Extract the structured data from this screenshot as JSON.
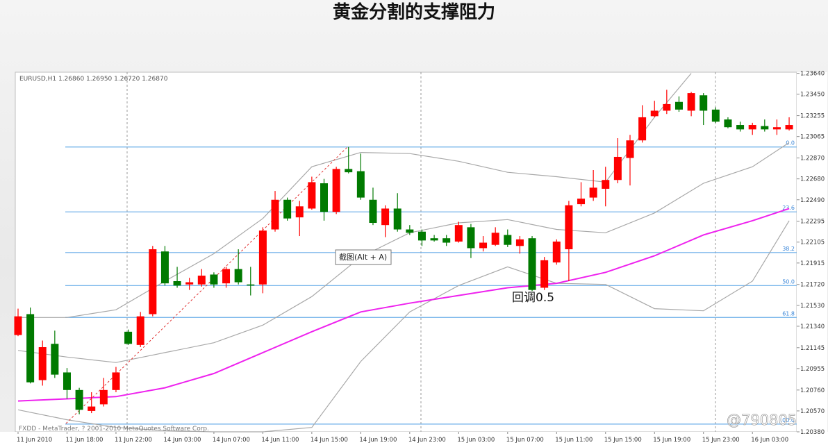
{
  "title": "黄金分割的支撑阻力",
  "tooltip": "截图(Alt + A)",
  "watermark": "@790805",
  "chart_data": {
    "type": "candlestick",
    "header": "EURUSD,H1  1.26860  1.26950  1.26720  1.26870",
    "footer": "FXDD - MetaTrader, ? 2001-2010 MetaQuotes Software Corp.",
    "annotation": "回调0.5",
    "up_color": "#ff0000",
    "down_color": "#007a00",
    "categories": [
      "11 Jun 2010",
      null,
      null,
      null,
      "11 Jun 18:00",
      null,
      null,
      null,
      "11 Jun 22:00",
      null,
      null,
      null,
      "14 Jun 03:00",
      null,
      null,
      null,
      "14 Jun 07:00",
      null,
      null,
      null,
      "14 Jun 11:00",
      null,
      null,
      null,
      "14 Jun 15:00",
      null,
      null,
      null,
      "14 Jun 19:00",
      null,
      null,
      null,
      "14 Jun 23:00",
      null,
      null,
      null,
      "15 Jun 03:00",
      null,
      null,
      null,
      "15 Jun 07:00",
      null,
      null,
      null,
      "15 Jun 11:00",
      null,
      null,
      null,
      "15 Jun 15:00",
      null,
      null,
      null,
      "15 Jun 19:00",
      null,
      null,
      null,
      "15 Jun 23:00",
      null,
      null,
      null,
      "16 Jun 03:00",
      null,
      null,
      null
    ],
    "open": [
      1.2126,
      1.2145,
      1.2085,
      1.2118,
      1.2092,
      1.2076,
      1.2057,
      1.2063,
      1.2076,
      1.2129,
      1.2117,
      1.2145,
      1.2202,
      1.2175,
      1.2172,
      1.2172,
      1.2181,
      1.2173,
      1.2186,
      1.2172,
      1.2172,
      1.2222,
      1.2249,
      1.2233,
      1.2241,
      1.2264,
      1.2238,
      1.2277,
      1.2275,
      1.2249,
      1.2226,
      1.2241,
      1.2222,
      1.222,
      1.2214,
      1.2214,
      1.2211,
      1.2224,
      1.2205,
      1.2208,
      1.2217,
      1.2207,
      1.2214,
      1.2169,
      1.2192,
      1.2204,
      1.2245,
      1.2251,
      1.2259,
      1.2267,
      1.2287,
      1.2303,
      1.2325,
      1.233,
      1.2338,
      1.233,
      1.2344,
      1.2331,
      1.2322,
      1.2317,
      1.2313,
      1.2316,
      1.2313,
      1.2313
    ],
    "high": [
      1.215,
      1.2151,
      1.2121,
      1.213,
      1.2096,
      1.2078,
      1.2074,
      1.2087,
      1.2097,
      1.2131,
      1.2147,
      1.2207,
      1.2207,
      1.2188,
      1.2178,
      1.2186,
      1.2183,
      1.2188,
      1.2204,
      1.2188,
      1.2224,
      1.2257,
      1.2251,
      1.2248,
      1.227,
      1.2268,
      1.2279,
      1.2297,
      1.2291,
      1.226,
      1.2244,
      1.2255,
      1.2226,
      1.2222,
      1.2217,
      1.2217,
      1.2229,
      1.2227,
      1.2216,
      1.2224,
      1.2222,
      1.2216,
      1.2216,
      1.2197,
      1.2213,
      1.2248,
      1.2265,
      1.2276,
      1.2279,
      1.2305,
      1.2308,
      1.2335,
      1.2339,
      1.2349,
      1.2343,
      1.2347,
      1.2346,
      1.2333,
      1.2324,
      1.232,
      1.2319,
      1.2322,
      1.2322,
      1.2324
    ],
    "low": [
      1.2125,
      1.2082,
      1.208,
      1.2087,
      1.2068,
      1.2054,
      1.2055,
      1.2061,
      1.2074,
      1.2117,
      1.2115,
      1.2143,
      1.2171,
      1.2169,
      1.2167,
      1.217,
      1.2169,
      1.2169,
      1.2172,
      1.2162,
      1.2164,
      1.222,
      1.223,
      1.2216,
      1.224,
      1.223,
      1.2236,
      1.2273,
      1.2249,
      1.2226,
      1.2215,
      1.222,
      1.2217,
      1.2207,
      1.2211,
      1.2207,
      1.221,
      1.2196,
      1.2202,
      1.2207,
      1.2206,
      1.22,
      1.2166,
      1.2167,
      1.219,
      1.2175,
      1.2243,
      1.2248,
      1.2243,
      1.2264,
      1.2262,
      1.2301,
      1.2324,
      1.2327,
      1.2329,
      1.2325,
      1.2317,
      1.2319,
      1.2314,
      1.2311,
      1.2308,
      1.2311,
      1.2308,
      1.2312
    ],
    "close": [
      1.2143,
      1.2083,
      1.2115,
      1.209,
      1.2076,
      1.2058,
      1.2061,
      1.2076,
      1.2092,
      1.2118,
      1.2143,
      1.2204,
      1.2173,
      1.2171,
      1.2174,
      1.218,
      1.2172,
      1.2186,
      1.2174,
      1.2171,
      1.2221,
      1.2249,
      1.2232,
      1.2243,
      1.2265,
      1.2238,
      1.2277,
      1.2274,
      1.2251,
      1.2228,
      1.2241,
      1.2222,
      1.2219,
      1.2212,
      1.2212,
      1.221,
      1.2226,
      1.2205,
      1.221,
      1.2219,
      1.2208,
      1.2213,
      1.2167,
      1.2194,
      1.2211,
      1.2244,
      1.225,
      1.226,
      1.2267,
      1.2288,
      1.2303,
      1.2324,
      1.233,
      1.2336,
      1.2331,
      1.2346,
      1.233,
      1.232,
      1.2315,
      1.2313,
      1.2317,
      1.2313,
      1.2315,
      1.2317
    ],
    "overlays": [
      {
        "color": "#a8a8a8",
        "x": [
          0,
          4,
          8,
          12,
          16,
          20,
          24,
          28,
          32,
          36,
          40,
          44,
          48,
          52,
          55
        ],
        "values": [
          1.2142,
          1.2142,
          1.2149,
          1.2175,
          1.22,
          1.2232,
          1.2279,
          1.2292,
          1.2291,
          1.2284,
          1.2274,
          1.227,
          1.2265,
          1.2324,
          1.2364
        ]
      },
      {
        "color": "#a8a8a8",
        "x": [
          0,
          4,
          8,
          12,
          16,
          20,
          24,
          28,
          32,
          36,
          40,
          44,
          48,
          52,
          56,
          60,
          63
        ],
        "values": [
          1.2112,
          1.2106,
          1.2101,
          1.211,
          1.2119,
          1.2135,
          1.2161,
          1.2197,
          1.2219,
          1.2228,
          1.2231,
          1.2222,
          1.2219,
          1.2237,
          1.2264,
          1.2279,
          1.2301
        ]
      },
      {
        "color": "#a8a8a8",
        "x": [
          0,
          4,
          8,
          12,
          16,
          20,
          24,
          28,
          32,
          36,
          40,
          44,
          48,
          52,
          56,
          60,
          63
        ],
        "values": [
          1.2058,
          1.2049,
          1.2042,
          1.2039,
          1.2038,
          1.2038,
          1.2042,
          1.2102,
          1.2147,
          1.2171,
          1.2188,
          1.2173,
          1.2172,
          1.215,
          1.2148,
          1.2175,
          1.223
        ]
      },
      {
        "color": "#ee22ee",
        "x": [
          0,
          4,
          8,
          12,
          16,
          20,
          24,
          28,
          32,
          36,
          40,
          44,
          48,
          52,
          56,
          60,
          63
        ],
        "values": [
          1.2066,
          1.2068,
          1.207,
          1.2078,
          1.2091,
          1.211,
          1.2129,
          1.2147,
          1.2155,
          1.2162,
          1.2169,
          1.2173,
          1.2183,
          1.2198,
          1.2217,
          1.223,
          1.2241
        ]
      }
    ],
    "fib_color": "#6aaee8",
    "fib_levels": [
      {
        "label": "0.0",
        "value": 1.2297
      },
      {
        "label": "23.6",
        "value": 1.2238
      },
      {
        "label": "38.2",
        "value": 1.2201
      },
      {
        "label": "50.0",
        "value": 1.2171
      },
      {
        "label": "61.8",
        "value": 1.2142
      },
      {
        "label": "100.0",
        "value": 1.2045
      }
    ],
    "ylim": [
      1.2038,
      1.2365
    ],
    "yticks": [
      {
        "value": 1.2038,
        "label": "1.20380"
      },
      {
        "value": 1.2057,
        "label": "1.20570"
      },
      {
        "value": 1.2076,
        "label": "1.20760"
      },
      {
        "value": 1.20955,
        "label": "1.20955"
      },
      {
        "value": 1.21145,
        "label": "1.21145"
      },
      {
        "value": 1.2134,
        "label": "1.21340"
      },
      {
        "value": 1.2153,
        "label": "1.21530"
      },
      {
        "value": 1.2172,
        "label": "1.21720"
      },
      {
        "value": 1.21915,
        "label": "1.21915"
      },
      {
        "value": 1.22105,
        "label": "1.22105"
      },
      {
        "value": 1.22295,
        "label": "1.22295"
      },
      {
        "value": 1.2249,
        "label": "1.22490"
      },
      {
        "value": 1.2268,
        "label": "1.22680"
      },
      {
        "value": 1.2287,
        "label": "1.22870"
      },
      {
        "value": 1.23065,
        "label": "1.23065"
      },
      {
        "value": 1.23255,
        "label": "1.23255"
      },
      {
        "value": 1.2345,
        "label": "1.23450"
      },
      {
        "value": 1.2364,
        "label": "1.23640"
      }
    ]
  }
}
